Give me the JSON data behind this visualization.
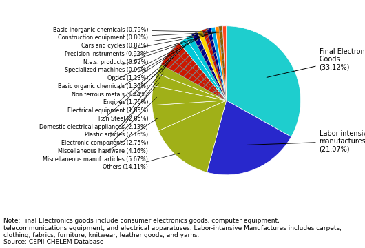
{
  "categories": [
    "Final Electronic Goods",
    "Labor-intensive manufactures",
    "Others",
    "Miscellaneous manuf. articles",
    "Miscellaneous hardware",
    "Electronic components",
    "Plastic articles",
    "Domestic electrical appliances",
    "Iron Steel",
    "Electrical equipment",
    "Engines",
    "Non ferrous metals",
    "Basic organic chemicals",
    "Optics",
    "Specialized machines",
    "N.e.s. products",
    "Precision instruments",
    "Cars and cycles",
    "Construction equipment",
    "Basic inorganic chemicals"
  ],
  "values": [
    33.12,
    21.07,
    14.11,
    5.67,
    4.16,
    2.75,
    2.16,
    2.13,
    2.05,
    1.85,
    1.76,
    1.44,
    1.35,
    1.13,
    0.99,
    0.92,
    0.92,
    0.82,
    0.8,
    0.79
  ],
  "wedge_colors": [
    "#20C8C8",
    "#2020CC",
    "#A8B820",
    "#A8B820",
    "#A8B820",
    "#A8B820",
    "#A8B820",
    "#CC2000",
    "#CC2000",
    "#CC2000",
    "#00C0D0",
    "#00C0D0",
    "#000090",
    "#FFD700",
    "#CC2000",
    "#000090",
    "#00A8E0",
    "#FF8800",
    "#906000",
    "#FF4020"
  ],
  "hatches": [
    null,
    null,
    null,
    null,
    null,
    null,
    null,
    "///",
    "///",
    "///",
    null,
    null,
    "///",
    null,
    "///",
    "///",
    null,
    null,
    "///",
    null
  ],
  "startangle": 90,
  "right_labels": [
    {
      "idx": 0,
      "text": "Final Electronic\nGoods\n(33.12%)"
    },
    {
      "idx": 1,
      "text": "Labor-intensive\nmanufactures\n(21.07%)"
    }
  ],
  "left_label_order": [
    19,
    18,
    17,
    16,
    15,
    14,
    13,
    12,
    11,
    10,
    9,
    8,
    7,
    6,
    5,
    4,
    3,
    2
  ],
  "left_label_texts": [
    "Basic inorganic chemicals (0.79%)",
    "Construction equipment (0.80%)",
    "Cars and cycles (0.82%)",
    "Precision instruments (0.92%)",
    "N.e.s. products (0.92%)",
    "Specialized machines (0.99%)",
    "Optics (1.13%)",
    "Basic organic chemicals (1.35%)",
    "Non ferrous metals (1.44%)",
    "Engines (1.76%)",
    "Electrical equipment (1.85%)",
    "Iron Steel (2.05%)",
    "Domestic electrical appliances (2.13%)",
    "Plastic articles (2.16%)",
    "Electronic components (2.75%)",
    "Miscellaneous hardware (4.16%)",
    "Miscellaneous manuf. articles (5.67%)",
    "Others (14.11%)"
  ],
  "note_lines": [
    "Note: Final Electronics goods include consumer electronics goods, computer equipment,",
    "telecommunications equipment, and electrical apparatuses. Labor-intensive Manufactures includes carpets,",
    "clothing, fabrics, furniture, knitwear, leather goods, and yarns.",
    "Source: CEPII-CHELEM Database"
  ]
}
